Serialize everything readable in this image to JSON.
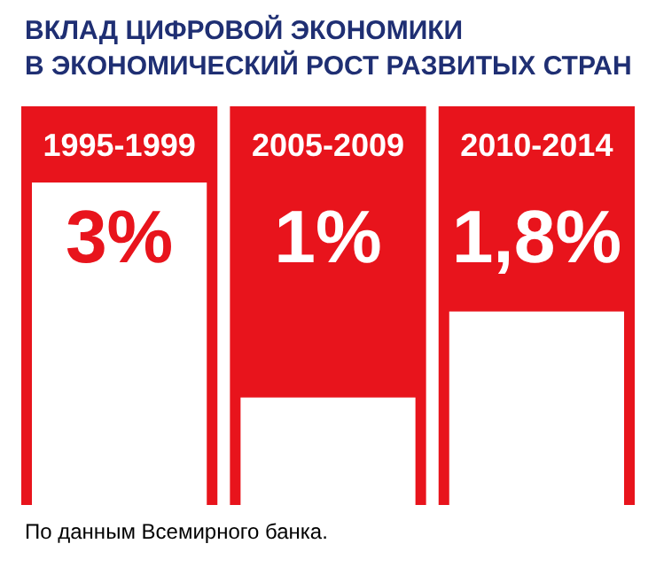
{
  "chart_data": {
    "type": "bar",
    "title": "ВКЛАД ЦИФРОВОЙ ЭКОНОМИКИ\nВ ЭКОНОМИЧЕСКИЙ РОСТ РАЗВИТЫХ СТРАН",
    "categories": [
      "1995-1999",
      "2005-2009",
      "2010-2014"
    ],
    "values": [
      3,
      1,
      1.8
    ],
    "color": "#ffffff",
    "value_labels": [
      "3%",
      "1%",
      "1,8%"
    ],
    "bands": [
      {
        "axis": "x",
        "from": "1995-1999",
        "to": "1995-1999",
        "color": "#e8141c"
      },
      {
        "axis": "x",
        "from": "2005-2009",
        "to": "2005-2009",
        "color": "#e8141c"
      },
      {
        "axis": "x",
        "from": "2010-2014",
        "to": "2010-2014",
        "color": "#e8141c"
      }
    ],
    "annotations": [
      "По данным Всемирного банка."
    ]
  }
}
